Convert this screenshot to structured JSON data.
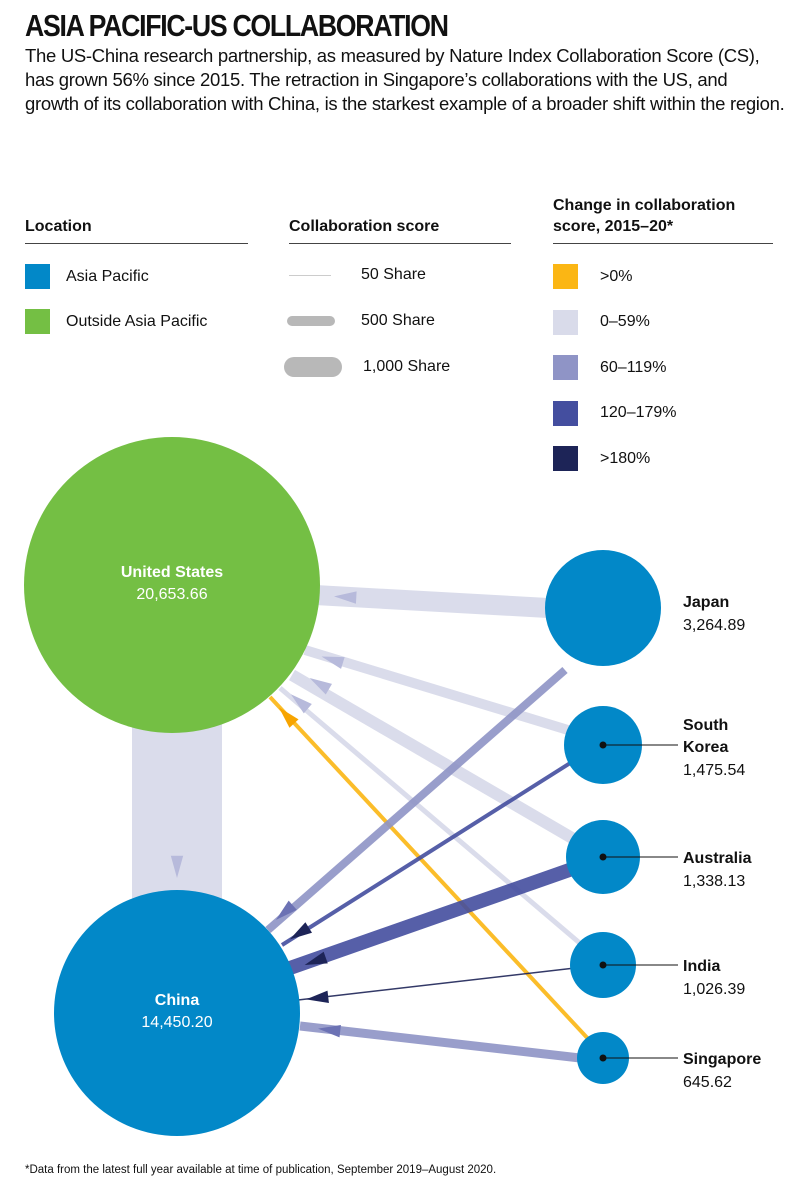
{
  "title": "ASIA PACIFIC-US COLLABORATION",
  "subtitle": "The US-China research partnership, as measured by Nature Index Collaboration Score (CS), has grown 56% since 2015. The retraction in Singapore’s collaborations with the US, and growth of its collaboration with China, is the starkest example of a broader shift within the region.",
  "legend": {
    "location": {
      "heading": "Location",
      "items": [
        {
          "label": "Asia Pacific",
          "color": "#0288c8"
        },
        {
          "label": "Outside Asia Pacific",
          "color": "#74bf44"
        }
      ]
    },
    "score": {
      "heading": "Collaboration score",
      "items": [
        {
          "label": "50 Share",
          "value": 50
        },
        {
          "label": "500 Share",
          "value": 500
        },
        {
          "label": "1,000 Share",
          "value": 1000
        }
      ]
    },
    "change": {
      "heading": "Change in collaboration score, 2015–20*",
      "items": [
        {
          "label": ">0%",
          "color": "#fbb614"
        },
        {
          "label": "0–59%",
          "color": "#d9dbea"
        },
        {
          "label": "60–119%",
          "color": "#8f94c6"
        },
        {
          "label": "120–179%",
          "color": "#444e9f"
        },
        {
          "label": ">180%",
          "color": "#1d2457"
        }
      ]
    }
  },
  "chart_data": {
    "type": "network",
    "nodes": [
      {
        "id": "us",
        "name": "United States",
        "value": "20,653.66",
        "region": "Outside Asia Pacific"
      },
      {
        "id": "china",
        "name": "China",
        "value": "14,450.20",
        "region": "Asia Pacific"
      },
      {
        "id": "japan",
        "name": "Japan",
        "value": "3,264.89",
        "region": "Asia Pacific"
      },
      {
        "id": "korea",
        "name": "South Korea",
        "value": "1,475.54",
        "region": "Asia Pacific"
      },
      {
        "id": "australia",
        "name": "Australia",
        "value": "1,338.13",
        "region": "Asia Pacific"
      },
      {
        "id": "india",
        "name": "India",
        "value": "1,026.39",
        "region": "Asia Pacific"
      },
      {
        "id": "singapore",
        "name": "Singapore",
        "value": "645.62",
        "region": "Asia Pacific"
      }
    ],
    "links": [
      {
        "from": "us",
        "to": "china",
        "change": "0–59%"
      },
      {
        "from": "japan",
        "to": "us",
        "change": "0–59%"
      },
      {
        "from": "korea",
        "to": "us",
        "change": "0–59%"
      },
      {
        "from": "australia",
        "to": "us",
        "change": "0–59%"
      },
      {
        "from": "india",
        "to": "us",
        "change": "0–59%"
      },
      {
        "from": "singapore",
        "to": "us",
        "change": ">0%"
      },
      {
        "from": "japan",
        "to": "china",
        "change": "60–119%"
      },
      {
        "from": "korea",
        "to": "china",
        "change": "120–179%"
      },
      {
        "from": "australia",
        "to": "china",
        "change": "120–179%"
      },
      {
        "from": "india",
        "to": "china",
        "change": ">180%"
      },
      {
        "from": "singapore",
        "to": "china",
        "change": "60–119%"
      }
    ]
  },
  "footnote": "*Data from the latest full year available at time of publication, September 2019–August 2020."
}
